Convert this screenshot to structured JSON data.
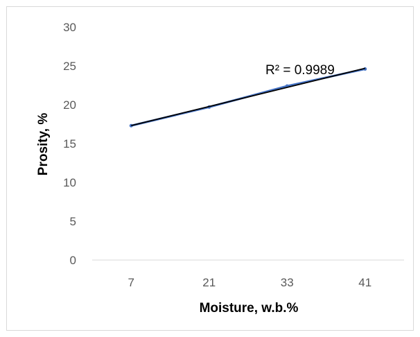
{
  "chart_data": {
    "type": "line",
    "title": "",
    "xlabel": "Moisture, w.b.%",
    "ylabel": "Prosity, %",
    "categories": [
      "7",
      "21",
      "33",
      "41"
    ],
    "series": [
      {
        "values": [
          17.3,
          19.7,
          22.4,
          24.6
        ],
        "color": "#4472C4"
      }
    ],
    "trendline": {
      "type": "linear",
      "color": "#000000",
      "label": "R² = 0.9989"
    },
    "ylim": [
      0,
      30
    ],
    "yticks": [
      0,
      5,
      10,
      15,
      20,
      25,
      30
    ],
    "grid": false,
    "legend": "none"
  }
}
